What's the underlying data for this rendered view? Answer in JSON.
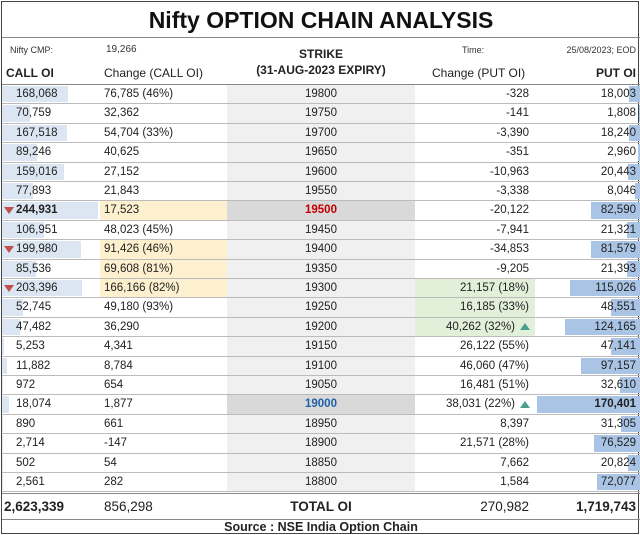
{
  "title": "Nifty OPTION CHAIN ANALYSIS",
  "meta": {
    "cmp_label": "Nifty CMP:",
    "cmp_value": "19,266",
    "time_label": "Time:",
    "time_value": "25/08/2023; EOD"
  },
  "headers": {
    "strike_line1": "STRIKE",
    "strike_line2": "(31-AUG-2023 EXPIRY)",
    "call_oi": "CALL OI",
    "change_call": "Change (CALL OI)",
    "change_put": "Change (PUT OI)",
    "put_oi": "PUT OI"
  },
  "rows": [
    {
      "call_oi": "168,068",
      "call_chg": "76,785 (46%)",
      "strike": "19800",
      "put_chg": "-328",
      "put_oi": "18,003",
      "call_bar": 0.69,
      "put_bar": 0.11
    },
    {
      "call_oi": "70,759",
      "call_chg": "32,362",
      "strike": "19750",
      "put_chg": "-141",
      "put_oi": "1,808",
      "call_bar": 0.29,
      "put_bar": 0.01
    },
    {
      "call_oi": "167,518",
      "call_chg": "54,704 (33%)",
      "strike": "19700",
      "put_chg": "-3,390",
      "put_oi": "18,240",
      "call_bar": 0.68,
      "put_bar": 0.11
    },
    {
      "call_oi": "89,246",
      "call_chg": "40,625",
      "strike": "19650",
      "put_chg": "-351",
      "put_oi": "2,960",
      "call_bar": 0.36,
      "put_bar": 0.02
    },
    {
      "call_oi": "159,016",
      "call_chg": "27,152",
      "strike": "19600",
      "put_chg": "-10,963",
      "put_oi": "20,443",
      "call_bar": 0.65,
      "put_bar": 0.12
    },
    {
      "call_oi": "77,893",
      "call_chg": "21,843",
      "strike": "19550",
      "put_chg": "-3,338",
      "put_oi": "8,046",
      "call_bar": 0.32,
      "put_bar": 0.05
    },
    {
      "call_oi": "244,931",
      "call_chg": "17,523",
      "strike": "19500",
      "put_chg": "-20,122",
      "put_oi": "82,590",
      "call_bar": 1.0,
      "put_bar": 0.48,
      "call_down": true,
      "call_bold": true,
      "call_chg_hl": "yellow",
      "strike_hl": "dark",
      "strike_color": "#c00000"
    },
    {
      "call_oi": "106,951",
      "call_chg": "48,023 (45%)",
      "strike": "19450",
      "put_chg": "-7,941",
      "put_oi": "21,321",
      "call_bar": 0.44,
      "put_bar": 0.13
    },
    {
      "call_oi": "199,980",
      "call_chg": "91,426 (46%)",
      "strike": "19400",
      "put_chg": "-34,853",
      "put_oi": "81,579",
      "call_bar": 0.82,
      "put_bar": 0.48,
      "call_down": true,
      "call_chg_hl": "yellow"
    },
    {
      "call_oi": "85,536",
      "call_chg": "69,608 (81%)",
      "strike": "19350",
      "put_chg": "-9,205",
      "put_oi": "21,393",
      "call_bar": 0.35,
      "put_bar": 0.13,
      "call_chg_hl": "yellow"
    },
    {
      "call_oi": "203,396",
      "call_chg": "166,166 (82%)",
      "strike": "19300",
      "put_chg": "21,157 (18%)",
      "put_oi": "115,026",
      "call_bar": 0.83,
      "put_bar": 0.68,
      "call_down": true,
      "call_chg_hl": "yellow",
      "put_chg_hl": "green"
    },
    {
      "call_oi": "52,745",
      "call_chg": "49,180 (93%)",
      "strike": "19250",
      "put_chg": "16,185 (33%)",
      "put_oi": "48,551",
      "call_bar": 0.22,
      "put_bar": 0.28,
      "put_chg_hl": "green"
    },
    {
      "call_oi": "47,482",
      "call_chg": "36,290",
      "strike": "19200",
      "put_chg": "40,262 (32%)",
      "put_oi": "124,165",
      "call_bar": 0.19,
      "put_bar": 0.73,
      "put_chg_hl": "green",
      "put_up": true
    },
    {
      "call_oi": "5,253",
      "call_chg": "4,341",
      "strike": "19150",
      "put_chg": "26,122 (55%)",
      "put_oi": "47,141",
      "call_bar": 0.02,
      "put_bar": 0.28
    },
    {
      "call_oi": "11,882",
      "call_chg": "8,784",
      "strike": "19100",
      "put_chg": "46,060 (47%)",
      "put_oi": "97,157",
      "call_bar": 0.05,
      "put_bar": 0.57
    },
    {
      "call_oi": "972",
      "call_chg": "654",
      "strike": "19050",
      "put_chg": "16,481 (51%)",
      "put_oi": "32,610",
      "call_bar": 0.0,
      "put_bar": 0.19
    },
    {
      "call_oi": "18,074",
      "call_chg": "1,877",
      "strike": "19000",
      "put_chg": "38,031 (22%)",
      "put_oi": "170,401",
      "call_bar": 0.07,
      "put_bar": 1.0,
      "strike_hl": "dark",
      "strike_color": "#1f5fa8",
      "put_up": true,
      "put_bold": true
    },
    {
      "call_oi": "890",
      "call_chg": "661",
      "strike": "18950",
      "put_chg": "8,397",
      "put_oi": "31,305",
      "call_bar": 0.0,
      "put_bar": 0.18
    },
    {
      "call_oi": "2,714",
      "call_chg": "-147",
      "strike": "18900",
      "put_chg": "21,571 (28%)",
      "put_oi": "76,529",
      "call_bar": 0.01,
      "put_bar": 0.45
    },
    {
      "call_oi": "502",
      "call_chg": "54",
      "strike": "18850",
      "put_chg": "7,662",
      "put_oi": "20,824",
      "call_bar": 0.0,
      "put_bar": 0.12
    },
    {
      "call_oi": "2,561",
      "call_chg": "282",
      "strike": "18800",
      "put_chg": "1,584",
      "put_oi": "72,077",
      "call_bar": 0.01,
      "put_bar": 0.42
    }
  ],
  "totals": {
    "call_oi": "2,623,339",
    "call_chg": "856,298",
    "label": "TOTAL OI",
    "put_chg": "270,982",
    "put_oi": "1,719,743"
  },
  "source": "Source : NSE India Option Chain",
  "colors": {
    "call_bar": "#dce6f2",
    "put_bar": "#a9c4e4",
    "yellow": "#fdf0cf",
    "green": "#e2efd9",
    "down_arrow": "#c0504d",
    "up_arrow": "#4aa08a"
  }
}
